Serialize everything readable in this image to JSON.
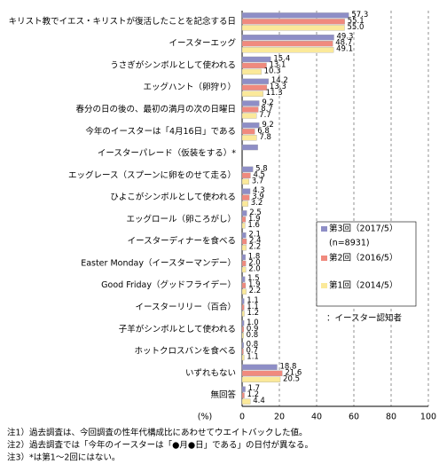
{
  "chart_data": {
    "type": "hbar",
    "categories": [
      "キリスト教でイエス・キリストが復活したことを記念する日",
      "イースターエッグ",
      "うさぎがシンボルとして使われる",
      "エッグハント（卵狩り）",
      "春分の日の後の、最初の満月の次の日曜日",
      "今年のイースターは「4月16日」である",
      "イースターパレード（仮装をする）*",
      "エッグレース（スプーンに卵をのせて走る）",
      "ひよこがシンボルとして使われる",
      "エッグロール（卵ころがし）",
      "イースターディナーを食べる",
      "Easter Monday（イースターマンデー）",
      "Good Friday（グッドフライデー）",
      "イースターリリー（百合）",
      "子羊がシンボルとして使われる",
      "ホットクロスバンを食べる",
      "いずれもない",
      "無回答"
    ],
    "series": [
      {
        "name": "第3回（2017/5）",
        "color": "#8e8ec6",
        "values": [
          57.3,
          49.3,
          15.4,
          14.2,
          9.2,
          9.2,
          8.4,
          5.8,
          4.3,
          2.5,
          2.1,
          1.8,
          1.5,
          1.1,
          1.0,
          0.8,
          18.8,
          1.7
        ],
        "value_labels": [
          "57.3",
          "49.3",
          "15.4",
          "14.2",
          "9.2",
          "9.2",
          null,
          "5.8",
          "4.3",
          "2.5",
          "2.1",
          "1.8",
          "1.5",
          "1.1",
          "1.0",
          "0.8",
          "18.8",
          "1.7"
        ]
      },
      {
        "name": "第2回（2016/5）",
        "color": "#f08a7e",
        "values": [
          55.1,
          48.7,
          13.1,
          13.3,
          8.7,
          6.8,
          null,
          4.5,
          3.9,
          1.9,
          2.4,
          2.0,
          1.9,
          1.1,
          0.9,
          0.7,
          21.6,
          1.2
        ],
        "value_labels": [
          "55.1",
          "48.7",
          "13.1",
          "13.3",
          "8.7",
          "6.8",
          null,
          "4.5",
          "3.9",
          "1.9",
          "2.4",
          "2.0",
          "1.9",
          "1.1",
          "0.9",
          "0.7",
          "21.6",
          "1.2"
        ]
      },
      {
        "name": "第1回（2014/5）",
        "color": "#fbe99a",
        "values": [
          55.0,
          49.1,
          10.3,
          11.3,
          7.7,
          7.8,
          null,
          3.7,
          3.2,
          1.6,
          2.2,
          2.0,
          2.2,
          1.2,
          0.8,
          1.1,
          20.5,
          4.4
        ],
        "value_labels": [
          "55.0",
          "49.1",
          "10.3",
          "11.3",
          "7.7",
          "7.8",
          null,
          "3.7",
          "3.2",
          "1.6",
          "2.2",
          "2.0",
          "2.2",
          "1.2",
          "0.8",
          "1.1",
          "20.5",
          "4.4"
        ]
      }
    ],
    "legend_note": "(n=8931)",
    "audience_note": "：イースター認知者",
    "xlabel": "(%)",
    "xlim": [
      0,
      100
    ],
    "xticks": [
      0,
      20,
      40,
      60,
      80,
      100
    ],
    "grid": true,
    "notes": [
      "注1）過去調査は、今回調査の性年代構成比にあわせてウエイトバックした値。",
      "注2）過去調査では「今年のイースターは「●月●日」である」の日付が異なる。",
      "注3）*は第1～2回にはない。"
    ]
  }
}
